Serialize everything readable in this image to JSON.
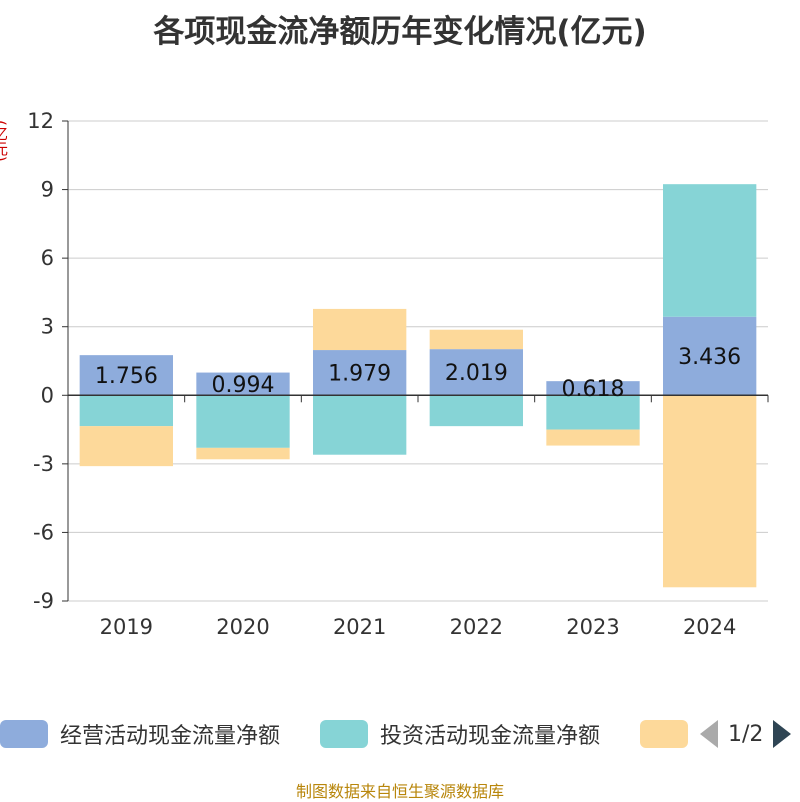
{
  "title": "各项现金流净额历年变化情况(亿元)",
  "y_unit": "(亿元)",
  "source": "制图数据来自恒生聚源数据库",
  "legend": {
    "items": [
      {
        "label": "经营活动现金流量净额",
        "color": "#8eacdc"
      },
      {
        "label": "投资活动现金流量净额",
        "color": "#86d4d6"
      },
      {
        "label": "",
        "color": "#fdd99a"
      }
    ],
    "pager": "1/2"
  },
  "chart_data": {
    "type": "bar",
    "stacked": true,
    "categories": [
      "2019",
      "2020",
      "2021",
      "2022",
      "2023",
      "2024"
    ],
    "series": [
      {
        "name": "经营活动现金流量净额",
        "color": "#8eacdc",
        "values": [
          1.756,
          0.994,
          1.979,
          2.019,
          0.618,
          3.436
        ]
      },
      {
        "name": "投资活动现金流量净额",
        "color": "#86d4d6",
        "values": [
          -1.35,
          -2.3,
          -2.6,
          -1.35,
          -1.5,
          5.8
        ]
      },
      {
        "name": "",
        "color": "#fdd99a",
        "values": [
          -1.75,
          -0.5,
          1.8,
          0.85,
          -0.7,
          -8.4
        ]
      }
    ],
    "data_labels": [
      "1.756",
      "0.994",
      "1.979",
      "2.019",
      "0.618",
      "3.436"
    ],
    "ylim": [
      -9,
      12
    ],
    "yticks": [
      12,
      9,
      6,
      3,
      0,
      -3,
      -6,
      -9
    ],
    "grid": true,
    "legend_position": "bottom"
  }
}
